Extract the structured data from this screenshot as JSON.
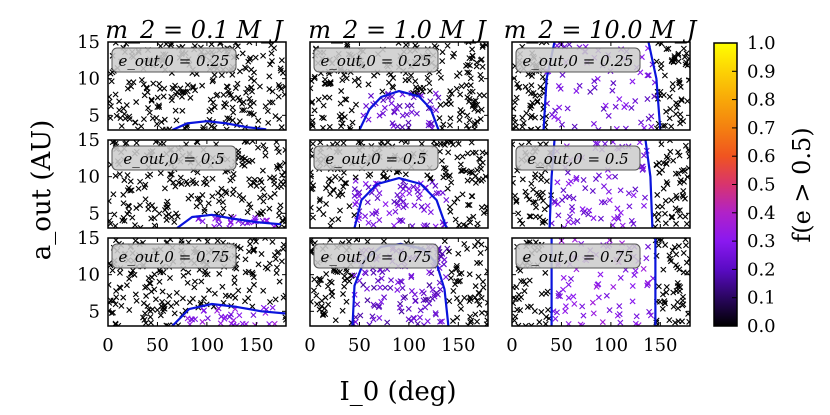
{
  "figure": {
    "column_titles": [
      "m_2 = 0.1 M_J",
      "m_2 = 1.0 M_J",
      "m_2 = 10.0 M_J"
    ],
    "row_labels": [
      "e_out,0 = 0.25",
      "e_out,0 = 0.5",
      "e_out,0 = 0.75"
    ],
    "ylabel": "a_out (AU)",
    "xlabel": "I_0 (deg)",
    "colorbar_label": "f(e > 0.5)"
  },
  "chart_data": {
    "type": "scatter",
    "layout": "3x3 grid of panels (rows: e_out,0; columns: m_2)",
    "x_ticks": [
      0,
      50,
      100,
      150
    ],
    "x_tick_labels": [
      "0",
      "50",
      "100",
      "150"
    ],
    "y_ticks": [
      5,
      10,
      15
    ],
    "y_tick_labels": [
      "5",
      "10",
      "15"
    ],
    "xlim": [
      0,
      180
    ],
    "ylim": [
      3,
      15
    ],
    "colorbar": {
      "colormap": "gnuplot",
      "range": [
        0.0,
        1.0
      ],
      "ticks": [
        0.0,
        0.1,
        0.2,
        0.3,
        0.4,
        0.5,
        0.6,
        0.7,
        0.8,
        0.9,
        1.0
      ],
      "tick_labels": [
        "0.0",
        "0.1",
        "0.2",
        "0.3",
        "0.4",
        "0.5",
        "0.6",
        "0.7",
        "0.8",
        "0.9",
        "1.0"
      ]
    },
    "marker": "x",
    "curve_color": "#0a14dc",
    "panels": [
      {
        "m2": "0.1",
        "e": "0.25",
        "curve": [
          [
            65,
            3
          ],
          [
            80,
            3.9
          ],
          [
            100,
            4.2
          ],
          [
            120,
            3.9
          ],
          [
            140,
            3.4
          ],
          [
            160,
            3.1
          ]
        ],
        "region": [
          [
            80,
            3
          ],
          [
            150,
            3
          ]
        ],
        "f_typical": 0.25
      },
      {
        "m2": "1.0",
        "e": "0.25",
        "curve": [
          [
            50,
            3
          ],
          [
            60,
            5.8
          ],
          [
            72,
            7.5
          ],
          [
            90,
            8.3
          ],
          [
            110,
            7.6
          ],
          [
            122,
            5.9
          ],
          [
            130,
            3
          ]
        ],
        "region": [
          [
            50,
            3
          ],
          [
            130,
            8
          ]
        ],
        "f_typical": 0.22
      },
      {
        "m2": "10.0",
        "e": "0.25",
        "curve": [
          [
            32,
            3
          ],
          [
            35,
            10
          ],
          [
            43,
            15
          ]
        ],
        "curve2": [
          [
            138,
            15
          ],
          [
            146,
            10
          ],
          [
            150,
            3
          ]
        ],
        "region": [
          [
            35,
            3
          ],
          [
            146,
            15
          ]
        ],
        "f_typical": 0.25
      },
      {
        "m2": "0.1",
        "e": "0.5",
        "curve": [
          [
            70,
            3
          ],
          [
            85,
            4.5
          ],
          [
            105,
            4.8
          ],
          [
            125,
            4.3
          ],
          [
            150,
            3.8
          ],
          [
            175,
            3.5
          ]
        ],
        "region": [
          [
            80,
            3
          ],
          [
            170,
            4.5
          ]
        ],
        "f_typical": 0.28
      },
      {
        "m2": "1.0",
        "e": "0.5",
        "curve": [
          [
            45,
            3
          ],
          [
            52,
            6.8
          ],
          [
            68,
            9.0
          ],
          [
            90,
            9.8
          ],
          [
            112,
            9.0
          ],
          [
            128,
            6.8
          ],
          [
            138,
            3
          ]
        ],
        "region": [
          [
            45,
            3
          ],
          [
            138,
            9.5
          ]
        ],
        "f_typical": 0.25
      },
      {
        "m2": "10.0",
        "e": "0.5",
        "curve": [
          [
            38,
            3
          ],
          [
            40,
            10
          ],
          [
            43,
            15
          ]
        ],
        "curve2": [
          [
            135,
            15
          ],
          [
            140,
            10
          ],
          [
            142,
            3
          ]
        ],
        "region": [
          [
            40,
            3
          ],
          [
            142,
            15
          ]
        ],
        "f_typical": 0.26
      },
      {
        "m2": "0.1",
        "e": "0.75",
        "curve": [
          [
            65,
            3
          ],
          [
            82,
            5.3
          ],
          [
            105,
            6.0
          ],
          [
            130,
            5.6
          ],
          [
            155,
            5.0
          ],
          [
            180,
            4.7
          ]
        ],
        "region": [
          [
            80,
            3
          ],
          [
            170,
            5.5
          ]
        ],
        "f_typical": 0.3
      },
      {
        "m2": "1.0",
        "e": "0.75",
        "curve": [
          [
            43,
            3
          ],
          [
            45,
            8.5
          ],
          [
            55,
            12.0
          ],
          [
            72,
            13.8
          ],
          [
            92,
            14.2
          ],
          [
            115,
            13.5
          ],
          [
            128,
            11.5
          ],
          [
            136,
            8.0
          ],
          [
            140,
            3
          ]
        ],
        "region": [
          [
            43,
            3
          ],
          [
            140,
            14
          ]
        ],
        "f_typical": 0.22
      },
      {
        "m2": "10.0",
        "e": "0.75",
        "curve": [
          [
            40,
            3
          ],
          [
            40,
            10
          ],
          [
            40,
            15
          ]
        ],
        "curve2": [
          [
            145,
            15
          ],
          [
            145,
            10
          ],
          [
            145,
            3
          ]
        ],
        "region": [
          [
            40,
            3
          ],
          [
            145,
            15
          ]
        ],
        "f_typical": 0.3
      }
    ]
  }
}
